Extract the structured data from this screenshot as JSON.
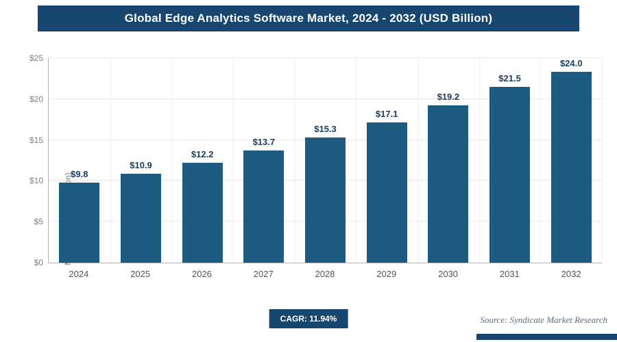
{
  "header": {
    "title": "Global Edge Analytics Software Market, 2024 - 2032 (USD Billion)"
  },
  "chart_data": {
    "type": "bar",
    "title": "Global Edge Analytics Software Market, 2024 - 2032 (USD Billion)",
    "categories": [
      "2024",
      "2025",
      "2026",
      "2027",
      "2028",
      "2029",
      "2030",
      "2031",
      "2032"
    ],
    "values": [
      9.8,
      10.9,
      12.2,
      13.7,
      15.3,
      17.1,
      19.2,
      21.5,
      24.0
    ],
    "value_labels": [
      "$9.8",
      "$10.9",
      "$12.2",
      "$13.7",
      "$15.3",
      "$17.1",
      "$19.2",
      "$21.5",
      "$24.0"
    ],
    "xlabel": "",
    "ylabel": "Market Size (USD Billion)",
    "ylim": [
      0,
      25
    ],
    "yticks": [
      0,
      5,
      10,
      15,
      20,
      25
    ],
    "ytick_labels": [
      "$0",
      "$5",
      "$10",
      "$15",
      "$20",
      "$25"
    ],
    "grid": "on",
    "legend": "none"
  },
  "footer": {
    "cagr_label": "CAGR: 11.94%",
    "source": "Source: Syndicate Market Research"
  },
  "colors": {
    "banner_navy": "#17466e",
    "bar_blue": "#1d5b80",
    "value_label": "#1b3c5e",
    "gridline": "#e7e7e7"
  }
}
